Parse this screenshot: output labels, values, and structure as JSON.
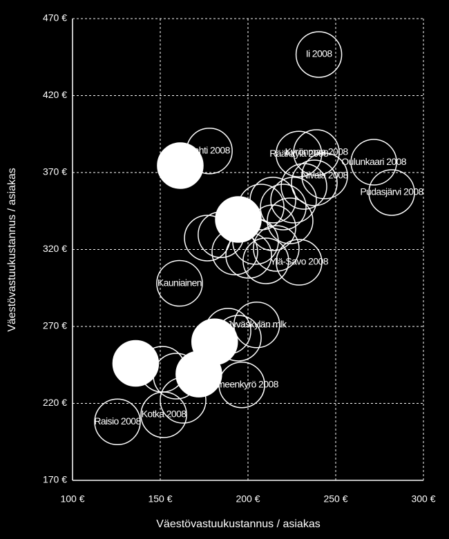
{
  "chart_data": {
    "type": "scatter",
    "x_label": "Väestövastuukustannus / asiakas",
    "y_label": "Väestövastuukustannus / asiakas",
    "xlim": [
      100,
      300
    ],
    "ylim": [
      170,
      470
    ],
    "xticks": [
      {
        "value": 100,
        "label": "100 €"
      },
      {
        "value": 150,
        "label": "150 €"
      },
      {
        "value": 200,
        "label": "200 €"
      },
      {
        "value": 250,
        "label": "250 €"
      },
      {
        "value": 300,
        "label": "300 €"
      }
    ],
    "yticks": [
      {
        "value": 170,
        "label": "170 €"
      },
      {
        "value": 220,
        "label": "220 €"
      },
      {
        "value": 270,
        "label": "270 €"
      },
      {
        "value": 320,
        "label": "320 €"
      },
      {
        "value": 370,
        "label": "370 €"
      },
      {
        "value": 420,
        "label": "420 €"
      },
      {
        "value": 470,
        "label": "470 €"
      }
    ],
    "grid": true,
    "color": "#ffffff",
    "x": [
      207.5,
      214.2,
      220.1,
      224.0,
      214.2,
      204.3,
      184.6,
      176.8,
      192.5,
      200.4,
      216.1,
      210.2,
      231.9,
      237.8,
      226.0,
      159.1,
      151.2,
      163.0,
      194.5,
      188.6,
      240.4,
      178.0,
      229.0,
      239.0,
      271.7,
      281.9,
      243.7,
      161.0,
      205.0,
      196.5,
      152.0,
      125.6,
      229.1,
      161.4,
      194.5,
      181.0,
      136.0,
      172.0
    ],
    "y": [
      347.6,
      352.1,
      347.6,
      338.6,
      334.1,
      325.2,
      329.6,
      327.4,
      318.4,
      316.2,
      320.7,
      312.6,
      361.0,
      363.3,
      352.1,
      237.7,
      242.2,
      222.0,
      262.4,
      266.9,
      446.7,
      384.0,
      382.0,
      383.0,
      376.7,
      357.0,
      367.8,
      298.0,
      271.0,
      232.0,
      212.6,
      208.0,
      311.7,
      374.5,
      339.5,
      260.0,
      246.0,
      239.0
    ],
    "labels": [
      null,
      null,
      null,
      null,
      null,
      null,
      null,
      null,
      null,
      null,
      null,
      null,
      null,
      null,
      null,
      null,
      null,
      null,
      null,
      null,
      "Ii 2008",
      "Lahti 2008",
      "Rääkkylä 2008",
      "Kyrönmaa 2008",
      "Oulunkaari 2008",
      "Pudasjärvi 2008",
      "Nivala 2008",
      "Kauniainen",
      "Jyväskylän mlk",
      "Hämeenkyrö 2008",
      "Kotka 2008",
      "Raisio 2008",
      "Ylä-Savo 2008",
      null,
      null,
      null,
      null,
      null
    ],
    "filled": [
      false,
      false,
      false,
      false,
      false,
      false,
      false,
      false,
      false,
      false,
      false,
      false,
      false,
      false,
      false,
      false,
      false,
      false,
      false,
      false,
      false,
      false,
      false,
      false,
      false,
      false,
      false,
      false,
      false,
      false,
      false,
      false,
      false,
      true,
      true,
      true,
      true,
      true
    ]
  }
}
